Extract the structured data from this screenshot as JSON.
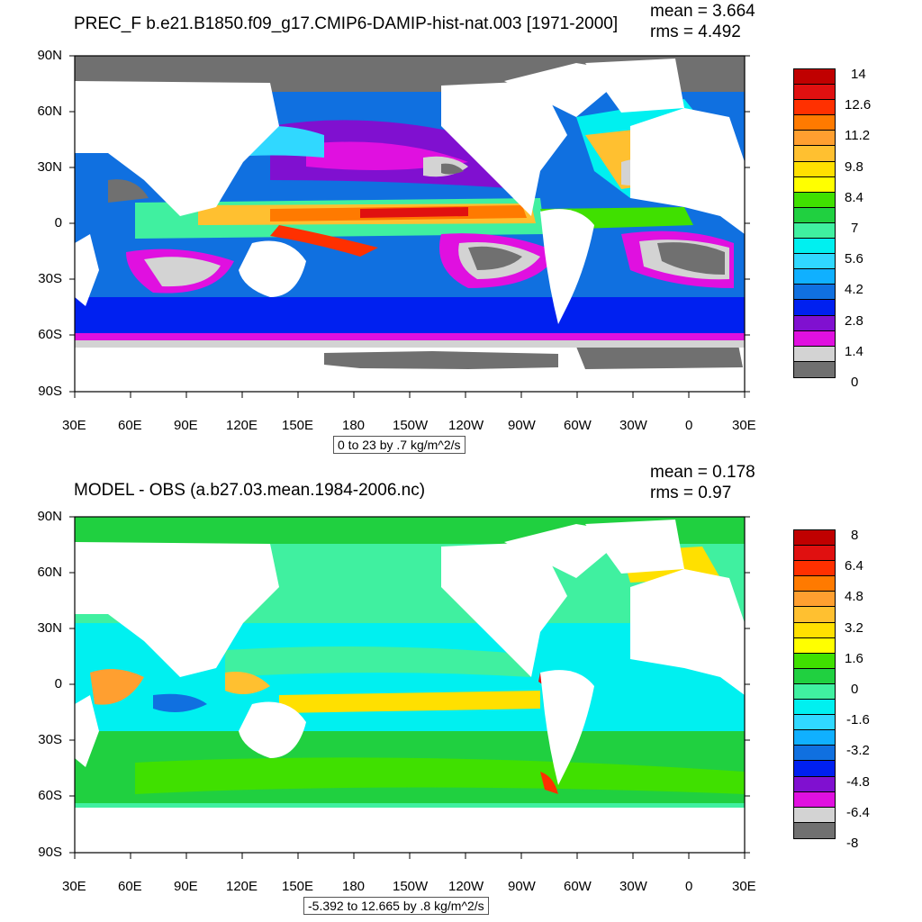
{
  "top_panel": {
    "title": "PREC_F b.e21.B1850.f09_g17.CMIP6-DAMIP-hist-nat.003 [1971-2000]",
    "mean_text": "mean = 3.664",
    "rms_text": "rms = 4.492",
    "range_text": "0 to 23 by .7 kg/m^2/s",
    "lat_labels": [
      "90N",
      "60N",
      "30N",
      "0",
      "30S",
      "60S",
      "90S"
    ],
    "lon_labels": [
      "30E",
      "60E",
      "90E",
      "120E",
      "150E",
      "180",
      "150W",
      "120W",
      "90W",
      "60W",
      "30W",
      "0",
      "30E"
    ],
    "colorbar_labels": [
      "14",
      "12.6",
      "11.2",
      "9.8",
      "8.4",
      "7",
      "5.6",
      "4.2",
      "2.8",
      "1.4",
      "0"
    ],
    "colorbar_colors": [
      "#c00000",
      "#e01010",
      "#ff3000",
      "#ff7a00",
      "#ff9f30",
      "#ffc030",
      "#ffe000",
      "#ffff00",
      "#40e000",
      "#20d040",
      "#40f0a0",
      "#00f0f0",
      "#30d8ff",
      "#10b0ff",
      "#1070e0",
      "#0020f0",
      "#8010d0",
      "#e010e0",
      "#d3d3d3",
      "#707070"
    ]
  },
  "bottom_panel": {
    "title": "MODEL - OBS (a.b27.03.mean.1984-2006.nc)",
    "mean_text": "mean = 0.178",
    "rms_text": "rms = 0.97",
    "range_text": "-5.392 to 12.665 by .8 kg/m^2/s",
    "lat_labels": [
      "90N",
      "60N",
      "30N",
      "0",
      "30S",
      "60S",
      "90S"
    ],
    "lon_labels": [
      "30E",
      "60E",
      "90E",
      "120E",
      "150E",
      "180",
      "150W",
      "120W",
      "90W",
      "60W",
      "30W",
      "0",
      "30E"
    ],
    "colorbar_labels": [
      "8",
      "6.4",
      "4.8",
      "3.2",
      "1.6",
      "0",
      "-1.6",
      "-3.2",
      "-4.8",
      "-6.4",
      "-8"
    ],
    "colorbar_colors": [
      "#c00000",
      "#e01010",
      "#ff3000",
      "#ff7a00",
      "#ff9f30",
      "#ffc030",
      "#ffe000",
      "#ffff00",
      "#40e000",
      "#20d040",
      "#40f0a0",
      "#00f0f0",
      "#30d8ff",
      "#10b0ff",
      "#1070e0",
      "#0020f0",
      "#8010d0",
      "#e010e0",
      "#d3d3d3",
      "#707070"
    ]
  }
}
